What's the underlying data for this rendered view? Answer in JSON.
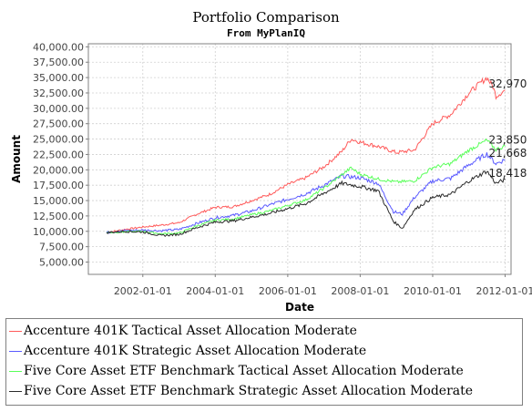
{
  "chart_data": {
    "type": "line",
    "title": "Portfolio Comparison",
    "subtitle": "From MyPlanIQ",
    "xlabel": "Date",
    "ylabel": "Amount",
    "xlim": [
      "2000-07-01",
      "2012-03-01"
    ],
    "ylim": [
      3000,
      40500
    ],
    "x_ticks": [
      "2002-01-01",
      "2004-01-01",
      "2006-01-01",
      "2008-01-01",
      "2010-01-01",
      "2012-01-01"
    ],
    "y_ticks": [
      5000,
      7500,
      10000,
      12500,
      15000,
      17500,
      20000,
      22500,
      25000,
      27500,
      30000,
      32500,
      35000,
      37500,
      40000
    ],
    "y_tick_labels": [
      "5,000.00",
      "7,500.00",
      "10,000.00",
      "12,500.00",
      "15,000.00",
      "17,500.00",
      "20,000.00",
      "22,500.00",
      "25,000.00",
      "27,500.00",
      "30,000.00",
      "32,500.00",
      "35,000.00",
      "37,500.00",
      "40,000.00"
    ],
    "grid": true,
    "legend_position": "bottom",
    "series": [
      {
        "name": "Accenture 401K Tactical Asset Allocation Moderate",
        "color": "#ff5a5a",
        "end_label": "32,970",
        "points": [
          [
            "2001-01-01",
            9800
          ],
          [
            "2001-07-01",
            10300
          ],
          [
            "2002-01-01",
            10700
          ],
          [
            "2002-07-01",
            11000
          ],
          [
            "2003-01-01",
            11400
          ],
          [
            "2003-07-01",
            12800
          ],
          [
            "2004-01-01",
            13900
          ],
          [
            "2004-07-01",
            14000
          ],
          [
            "2005-01-01",
            15000
          ],
          [
            "2005-07-01",
            16000
          ],
          [
            "2006-01-01",
            17600
          ],
          [
            "2006-07-01",
            18700
          ],
          [
            "2007-01-01",
            20500
          ],
          [
            "2007-07-01",
            23000
          ],
          [
            "2007-10-01",
            25000
          ],
          [
            "2008-01-01",
            24500
          ],
          [
            "2008-07-01",
            23800
          ],
          [
            "2009-01-01",
            22800
          ],
          [
            "2009-07-01",
            23200
          ],
          [
            "2010-01-01",
            27500
          ],
          [
            "2010-07-01",
            29000
          ],
          [
            "2011-01-01",
            32500
          ],
          [
            "2011-07-01",
            35000
          ],
          [
            "2011-09-01",
            33500
          ],
          [
            "2011-10-01",
            32000
          ],
          [
            "2012-01-01",
            32970
          ]
        ]
      },
      {
        "name": "Accenture 401K Strategic Asset Allocation Moderate",
        "color": "#5a5aff",
        "end_label": "21,668",
        "points": [
          [
            "2001-01-01",
            9800
          ],
          [
            "2001-07-01",
            10100
          ],
          [
            "2002-01-01",
            10200
          ],
          [
            "2002-07-01",
            10100
          ],
          [
            "2003-01-01",
            10300
          ],
          [
            "2003-07-01",
            11300
          ],
          [
            "2004-01-01",
            12200
          ],
          [
            "2004-07-01",
            12600
          ],
          [
            "2005-01-01",
            13300
          ],
          [
            "2005-07-01",
            14300
          ],
          [
            "2006-01-01",
            15200
          ],
          [
            "2006-07-01",
            16100
          ],
          [
            "2007-01-01",
            17500
          ],
          [
            "2007-07-01",
            19000
          ],
          [
            "2008-01-01",
            18700
          ],
          [
            "2008-07-01",
            17800
          ],
          [
            "2008-12-01",
            13200
          ],
          [
            "2009-03-01",
            12800
          ],
          [
            "2009-07-01",
            15500
          ],
          [
            "2010-01-01",
            18200
          ],
          [
            "2010-07-01",
            18600
          ],
          [
            "2011-01-01",
            20800
          ],
          [
            "2011-07-01",
            22600
          ],
          [
            "2011-10-01",
            21000
          ],
          [
            "2012-01-01",
            21668
          ]
        ]
      },
      {
        "name": "Five Core Asset ETF Benchmark Tactical Asset Allocation Moderate",
        "color": "#5aff5a",
        "end_label": "23,850",
        "points": [
          [
            "2001-01-01",
            9800
          ],
          [
            "2001-07-01",
            9900
          ],
          [
            "2002-01-01",
            10000
          ],
          [
            "2002-07-01",
            9600
          ],
          [
            "2003-01-01",
            9700
          ],
          [
            "2003-07-01",
            10900
          ],
          [
            "2004-01-01",
            11800
          ],
          [
            "2004-07-01",
            12000
          ],
          [
            "2005-01-01",
            12700
          ],
          [
            "2005-07-01",
            13300
          ],
          [
            "2006-01-01",
            14200
          ],
          [
            "2006-07-01",
            15100
          ],
          [
            "2007-01-01",
            17000
          ],
          [
            "2007-07-01",
            19200
          ],
          [
            "2007-10-01",
            20300
          ],
          [
            "2008-01-01",
            19300
          ],
          [
            "2008-07-01",
            18500
          ],
          [
            "2009-01-01",
            18000
          ],
          [
            "2009-07-01",
            18200
          ],
          [
            "2010-01-01",
            20400
          ],
          [
            "2010-07-01",
            21000
          ],
          [
            "2011-01-01",
            23200
          ],
          [
            "2011-07-01",
            24800
          ],
          [
            "2011-10-01",
            23300
          ],
          [
            "2012-01-01",
            23850
          ]
        ]
      },
      {
        "name": "Five Core Asset ETF Benchmark Strategic Asset Allocation Moderate",
        "color": "#2a2a2a",
        "end_label": "18,418",
        "points": [
          [
            "2001-01-01",
            9800
          ],
          [
            "2001-07-01",
            10000
          ],
          [
            "2002-01-01",
            9900
          ],
          [
            "2002-07-01",
            9300
          ],
          [
            "2003-01-01",
            9500
          ],
          [
            "2003-07-01",
            10600
          ],
          [
            "2004-01-01",
            11500
          ],
          [
            "2004-07-01",
            11700
          ],
          [
            "2005-01-01",
            12300
          ],
          [
            "2005-07-01",
            12900
          ],
          [
            "2006-01-01",
            13700
          ],
          [
            "2006-07-01",
            14500
          ],
          [
            "2007-01-01",
            16200
          ],
          [
            "2007-07-01",
            17800
          ],
          [
            "2008-01-01",
            17300
          ],
          [
            "2008-07-01",
            16600
          ],
          [
            "2008-12-01",
            11600
          ],
          [
            "2009-03-01",
            10500
          ],
          [
            "2009-07-01",
            13500
          ],
          [
            "2010-01-01",
            15500
          ],
          [
            "2010-07-01",
            16000
          ],
          [
            "2011-01-01",
            18200
          ],
          [
            "2011-07-01",
            19800
          ],
          [
            "2011-10-01",
            17800
          ],
          [
            "2012-01-01",
            18418
          ]
        ]
      }
    ]
  }
}
